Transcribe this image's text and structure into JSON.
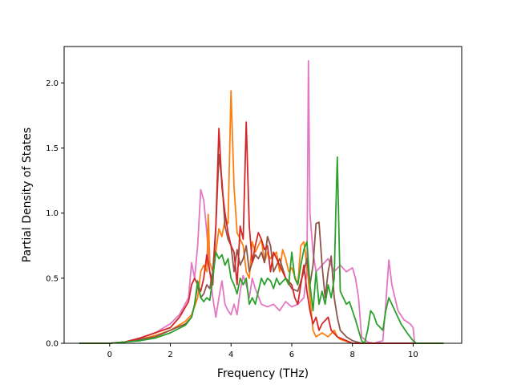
{
  "chart_data": {
    "type": "line",
    "title": "",
    "xlabel": "Frequency (THz)",
    "ylabel": "Partial Density of States",
    "xlim": [
      -1.5,
      11.6
    ],
    "ylim": [
      0.0,
      2.28
    ],
    "xticks": [
      0,
      2,
      4,
      6,
      8,
      10
    ],
    "yticks": [
      0.0,
      0.5,
      1.0,
      1.5,
      2.0
    ],
    "xtick_labels": [
      "0",
      "2",
      "4",
      "6",
      "8",
      "10"
    ],
    "ytick_labels": [
      "0.0",
      "0.5",
      "1.0",
      "1.5",
      "2.0"
    ],
    "grid": false,
    "legend": "none",
    "series": [
      {
        "color": "#e377c2",
        "points": [
          [
            -1.0,
            0
          ],
          [
            0.0,
            0.0
          ],
          [
            0.5,
            0.01
          ],
          [
            1.0,
            0.04
          ],
          [
            1.5,
            0.08
          ],
          [
            2.0,
            0.15
          ],
          [
            2.3,
            0.22
          ],
          [
            2.6,
            0.35
          ],
          [
            2.7,
            0.62
          ],
          [
            2.8,
            0.5
          ],
          [
            2.9,
            0.75
          ],
          [
            3.0,
            1.18
          ],
          [
            3.1,
            1.1
          ],
          [
            3.2,
            0.85
          ],
          [
            3.3,
            0.55
          ],
          [
            3.4,
            0.35
          ],
          [
            3.5,
            0.2
          ],
          [
            3.6,
            0.35
          ],
          [
            3.7,
            0.48
          ],
          [
            3.8,
            0.3
          ],
          [
            3.9,
            0.25
          ],
          [
            4.0,
            0.22
          ],
          [
            4.1,
            0.3
          ],
          [
            4.2,
            0.22
          ],
          [
            4.3,
            0.4
          ],
          [
            4.4,
            0.52
          ],
          [
            4.5,
            0.45
          ],
          [
            4.6,
            0.35
          ],
          [
            4.7,
            0.5
          ],
          [
            4.8,
            0.42
          ],
          [
            5.0,
            0.3
          ],
          [
            5.2,
            0.28
          ],
          [
            5.4,
            0.3
          ],
          [
            5.6,
            0.25
          ],
          [
            5.8,
            0.32
          ],
          [
            6.0,
            0.28
          ],
          [
            6.2,
            0.3
          ],
          [
            6.4,
            0.35
          ],
          [
            6.5,
            0.55
          ],
          [
            6.55,
            2.17
          ],
          [
            6.6,
            1.0
          ],
          [
            6.7,
            0.7
          ],
          [
            6.8,
            0.55
          ],
          [
            7.0,
            0.6
          ],
          [
            7.2,
            0.65
          ],
          [
            7.4,
            0.55
          ],
          [
            7.6,
            0.6
          ],
          [
            7.8,
            0.55
          ],
          [
            8.0,
            0.58
          ],
          [
            8.1,
            0.5
          ],
          [
            8.2,
            0.35
          ],
          [
            8.3,
            0.05
          ],
          [
            8.5,
            0.01
          ],
          [
            8.7,
            0.0
          ],
          [
            9.0,
            0.02
          ],
          [
            9.1,
            0.3
          ],
          [
            9.2,
            0.64
          ],
          [
            9.3,
            0.45
          ],
          [
            9.5,
            0.25
          ],
          [
            9.7,
            0.18
          ],
          [
            9.9,
            0.15
          ],
          [
            10.0,
            0.12
          ],
          [
            10.05,
            0.0
          ],
          [
            11.0,
            0.0
          ]
        ]
      },
      {
        "color": "#ff7f0e",
        "points": [
          [
            -1.0,
            0
          ],
          [
            0.0,
            0.0
          ],
          [
            0.5,
            0.01
          ],
          [
            1.0,
            0.03
          ],
          [
            1.5,
            0.06
          ],
          [
            2.0,
            0.1
          ],
          [
            2.5,
            0.17
          ],
          [
            2.7,
            0.22
          ],
          [
            2.9,
            0.35
          ],
          [
            3.0,
            0.55
          ],
          [
            3.1,
            0.6
          ],
          [
            3.2,
            0.55
          ],
          [
            3.25,
            0.99
          ],
          [
            3.3,
            0.62
          ],
          [
            3.4,
            0.55
          ],
          [
            3.5,
            0.7
          ],
          [
            3.6,
            0.88
          ],
          [
            3.7,
            0.82
          ],
          [
            3.8,
            0.95
          ],
          [
            3.9,
            0.92
          ],
          [
            4.0,
            1.94
          ],
          [
            4.1,
            1.2
          ],
          [
            4.2,
            0.85
          ],
          [
            4.3,
            0.8
          ],
          [
            4.4,
            0.75
          ],
          [
            4.5,
            0.55
          ],
          [
            4.6,
            0.5
          ],
          [
            4.7,
            0.78
          ],
          [
            4.8,
            0.7
          ],
          [
            4.9,
            0.75
          ],
          [
            5.0,
            0.8
          ],
          [
            5.1,
            0.62
          ],
          [
            5.2,
            0.7
          ],
          [
            5.3,
            0.65
          ],
          [
            5.5,
            0.7
          ],
          [
            5.6,
            0.55
          ],
          [
            5.7,
            0.72
          ],
          [
            5.8,
            0.65
          ],
          [
            5.9,
            0.55
          ],
          [
            6.0,
            0.58
          ],
          [
            6.2,
            0.45
          ],
          [
            6.3,
            0.75
          ],
          [
            6.4,
            0.78
          ],
          [
            6.5,
            0.6
          ],
          [
            6.6,
            0.35
          ],
          [
            6.7,
            0.1
          ],
          [
            6.8,
            0.05
          ],
          [
            7.0,
            0.08
          ],
          [
            7.2,
            0.05
          ],
          [
            7.4,
            0.1
          ],
          [
            7.5,
            0.05
          ],
          [
            7.6,
            0.03
          ],
          [
            8.0,
            0.0
          ],
          [
            11.0,
            0.0
          ]
        ]
      },
      {
        "color": "#8c564b",
        "points": [
          [
            -1.0,
            0
          ],
          [
            0.0,
            0.0
          ],
          [
            0.5,
            0.01
          ],
          [
            1.0,
            0.03
          ],
          [
            1.5,
            0.05
          ],
          [
            2.0,
            0.1
          ],
          [
            2.5,
            0.15
          ],
          [
            2.7,
            0.2
          ],
          [
            2.8,
            0.3
          ],
          [
            2.9,
            0.45
          ],
          [
            3.0,
            0.35
          ],
          [
            3.1,
            0.38
          ],
          [
            3.2,
            0.45
          ],
          [
            3.3,
            0.42
          ],
          [
            3.4,
            0.55
          ],
          [
            3.5,
            0.9
          ],
          [
            3.6,
            1.45
          ],
          [
            3.7,
            1.25
          ],
          [
            3.8,
            0.9
          ],
          [
            3.9,
            0.8
          ],
          [
            4.0,
            0.75
          ],
          [
            4.1,
            0.55
          ],
          [
            4.2,
            0.72
          ],
          [
            4.3,
            0.6
          ],
          [
            4.4,
            0.65
          ],
          [
            4.5,
            0.75
          ],
          [
            4.6,
            0.55
          ],
          [
            4.7,
            0.62
          ],
          [
            4.8,
            0.68
          ],
          [
            4.9,
            0.65
          ],
          [
            5.0,
            0.7
          ],
          [
            5.1,
            0.62
          ],
          [
            5.2,
            0.82
          ],
          [
            5.3,
            0.75
          ],
          [
            5.4,
            0.55
          ],
          [
            5.6,
            0.65
          ],
          [
            5.8,
            0.5
          ],
          [
            6.0,
            0.42
          ],
          [
            6.2,
            0.4
          ],
          [
            6.4,
            0.55
          ],
          [
            6.5,
            0.65
          ],
          [
            6.6,
            0.45
          ],
          [
            6.7,
            0.6
          ],
          [
            6.8,
            0.92
          ],
          [
            6.9,
            0.93
          ],
          [
            7.0,
            0.6
          ],
          [
            7.1,
            0.35
          ],
          [
            7.2,
            0.55
          ],
          [
            7.3,
            0.67
          ],
          [
            7.4,
            0.35
          ],
          [
            7.5,
            0.2
          ],
          [
            7.6,
            0.1
          ],
          [
            7.8,
            0.05
          ],
          [
            8.0,
            0.02
          ],
          [
            8.3,
            0.0
          ],
          [
            11.0,
            0.0
          ]
        ]
      },
      {
        "color": "#d62728",
        "points": [
          [
            -1.0,
            0
          ],
          [
            0.0,
            0.0
          ],
          [
            0.5,
            0.01
          ],
          [
            1.0,
            0.04
          ],
          [
            1.5,
            0.08
          ],
          [
            2.0,
            0.12
          ],
          [
            2.3,
            0.2
          ],
          [
            2.6,
            0.32
          ],
          [
            2.7,
            0.45
          ],
          [
            2.8,
            0.5
          ],
          [
            2.9,
            0.45
          ],
          [
            3.0,
            0.4
          ],
          [
            3.1,
            0.5
          ],
          [
            3.2,
            0.68
          ],
          [
            3.3,
            0.55
          ],
          [
            3.4,
            0.45
          ],
          [
            3.5,
            0.9
          ],
          [
            3.6,
            1.65
          ],
          [
            3.7,
            1.2
          ],
          [
            3.8,
            1.0
          ],
          [
            3.9,
            0.85
          ],
          [
            4.0,
            0.75
          ],
          [
            4.1,
            0.7
          ],
          [
            4.2,
            0.45
          ],
          [
            4.3,
            0.9
          ],
          [
            4.4,
            0.8
          ],
          [
            4.5,
            1.7
          ],
          [
            4.6,
            0.9
          ],
          [
            4.7,
            0.62
          ],
          [
            4.8,
            0.75
          ],
          [
            4.9,
            0.85
          ],
          [
            5.0,
            0.8
          ],
          [
            5.1,
            0.72
          ],
          [
            5.2,
            0.75
          ],
          [
            5.3,
            0.55
          ],
          [
            5.4,
            0.7
          ],
          [
            5.6,
            0.6
          ],
          [
            5.8,
            0.5
          ],
          [
            6.0,
            0.45
          ],
          [
            6.1,
            0.35
          ],
          [
            6.2,
            0.3
          ],
          [
            6.3,
            0.45
          ],
          [
            6.4,
            0.6
          ],
          [
            6.5,
            0.4
          ],
          [
            6.6,
            0.25
          ],
          [
            6.7,
            0.15
          ],
          [
            6.8,
            0.2
          ],
          [
            6.9,
            0.1
          ],
          [
            7.0,
            0.15
          ],
          [
            7.2,
            0.2
          ],
          [
            7.3,
            0.1
          ],
          [
            7.5,
            0.05
          ],
          [
            7.7,
            0.03
          ],
          [
            8.0,
            0.0
          ],
          [
            11.0,
            0.0
          ]
        ]
      },
      {
        "color": "#2ca02c",
        "points": [
          [
            -1.0,
            0
          ],
          [
            0.0,
            0.0
          ],
          [
            0.5,
            0.01
          ],
          [
            1.0,
            0.02
          ],
          [
            1.5,
            0.04
          ],
          [
            2.0,
            0.08
          ],
          [
            2.5,
            0.14
          ],
          [
            2.7,
            0.2
          ],
          [
            2.8,
            0.3
          ],
          [
            2.9,
            0.48
          ],
          [
            3.0,
            0.35
          ],
          [
            3.1,
            0.32
          ],
          [
            3.2,
            0.35
          ],
          [
            3.3,
            0.33
          ],
          [
            3.4,
            0.5
          ],
          [
            3.5,
            0.7
          ],
          [
            3.6,
            0.65
          ],
          [
            3.7,
            0.68
          ],
          [
            3.8,
            0.6
          ],
          [
            3.9,
            0.65
          ],
          [
            4.0,
            0.5
          ],
          [
            4.1,
            0.45
          ],
          [
            4.2,
            0.38
          ],
          [
            4.3,
            0.5
          ],
          [
            4.4,
            0.45
          ],
          [
            4.5,
            0.5
          ],
          [
            4.6,
            0.3
          ],
          [
            4.7,
            0.35
          ],
          [
            4.8,
            0.3
          ],
          [
            4.9,
            0.4
          ],
          [
            5.0,
            0.5
          ],
          [
            5.1,
            0.45
          ],
          [
            5.2,
            0.5
          ],
          [
            5.3,
            0.48
          ],
          [
            5.4,
            0.42
          ],
          [
            5.5,
            0.5
          ],
          [
            5.6,
            0.45
          ],
          [
            5.8,
            0.5
          ],
          [
            5.9,
            0.45
          ],
          [
            6.0,
            0.7
          ],
          [
            6.1,
            0.5
          ],
          [
            6.2,
            0.45
          ],
          [
            6.3,
            0.6
          ],
          [
            6.4,
            0.72
          ],
          [
            6.5,
            0.78
          ],
          [
            6.6,
            0.45
          ],
          [
            6.7,
            0.25
          ],
          [
            6.8,
            0.55
          ],
          [
            6.9,
            0.3
          ],
          [
            7.0,
            0.4
          ],
          [
            7.1,
            0.3
          ],
          [
            7.2,
            0.45
          ],
          [
            7.3,
            0.35
          ],
          [
            7.4,
            0.5
          ],
          [
            7.45,
            1.0
          ],
          [
            7.5,
            1.43
          ],
          [
            7.55,
            0.9
          ],
          [
            7.6,
            0.4
          ],
          [
            7.7,
            0.35
          ],
          [
            7.8,
            0.3
          ],
          [
            7.9,
            0.32
          ],
          [
            8.0,
            0.25
          ],
          [
            8.1,
            0.18
          ],
          [
            8.2,
            0.1
          ],
          [
            8.3,
            0.02
          ],
          [
            8.4,
            0.0
          ],
          [
            8.5,
            0.1
          ],
          [
            8.6,
            0.25
          ],
          [
            8.7,
            0.22
          ],
          [
            8.8,
            0.15
          ],
          [
            9.0,
            0.1
          ],
          [
            9.1,
            0.25
          ],
          [
            9.2,
            0.35
          ],
          [
            9.3,
            0.3
          ],
          [
            9.4,
            0.25
          ],
          [
            9.6,
            0.15
          ],
          [
            9.8,
            0.08
          ],
          [
            10.0,
            0.02
          ],
          [
            10.1,
            0.0
          ],
          [
            11.0,
            0.0
          ]
        ]
      }
    ]
  }
}
